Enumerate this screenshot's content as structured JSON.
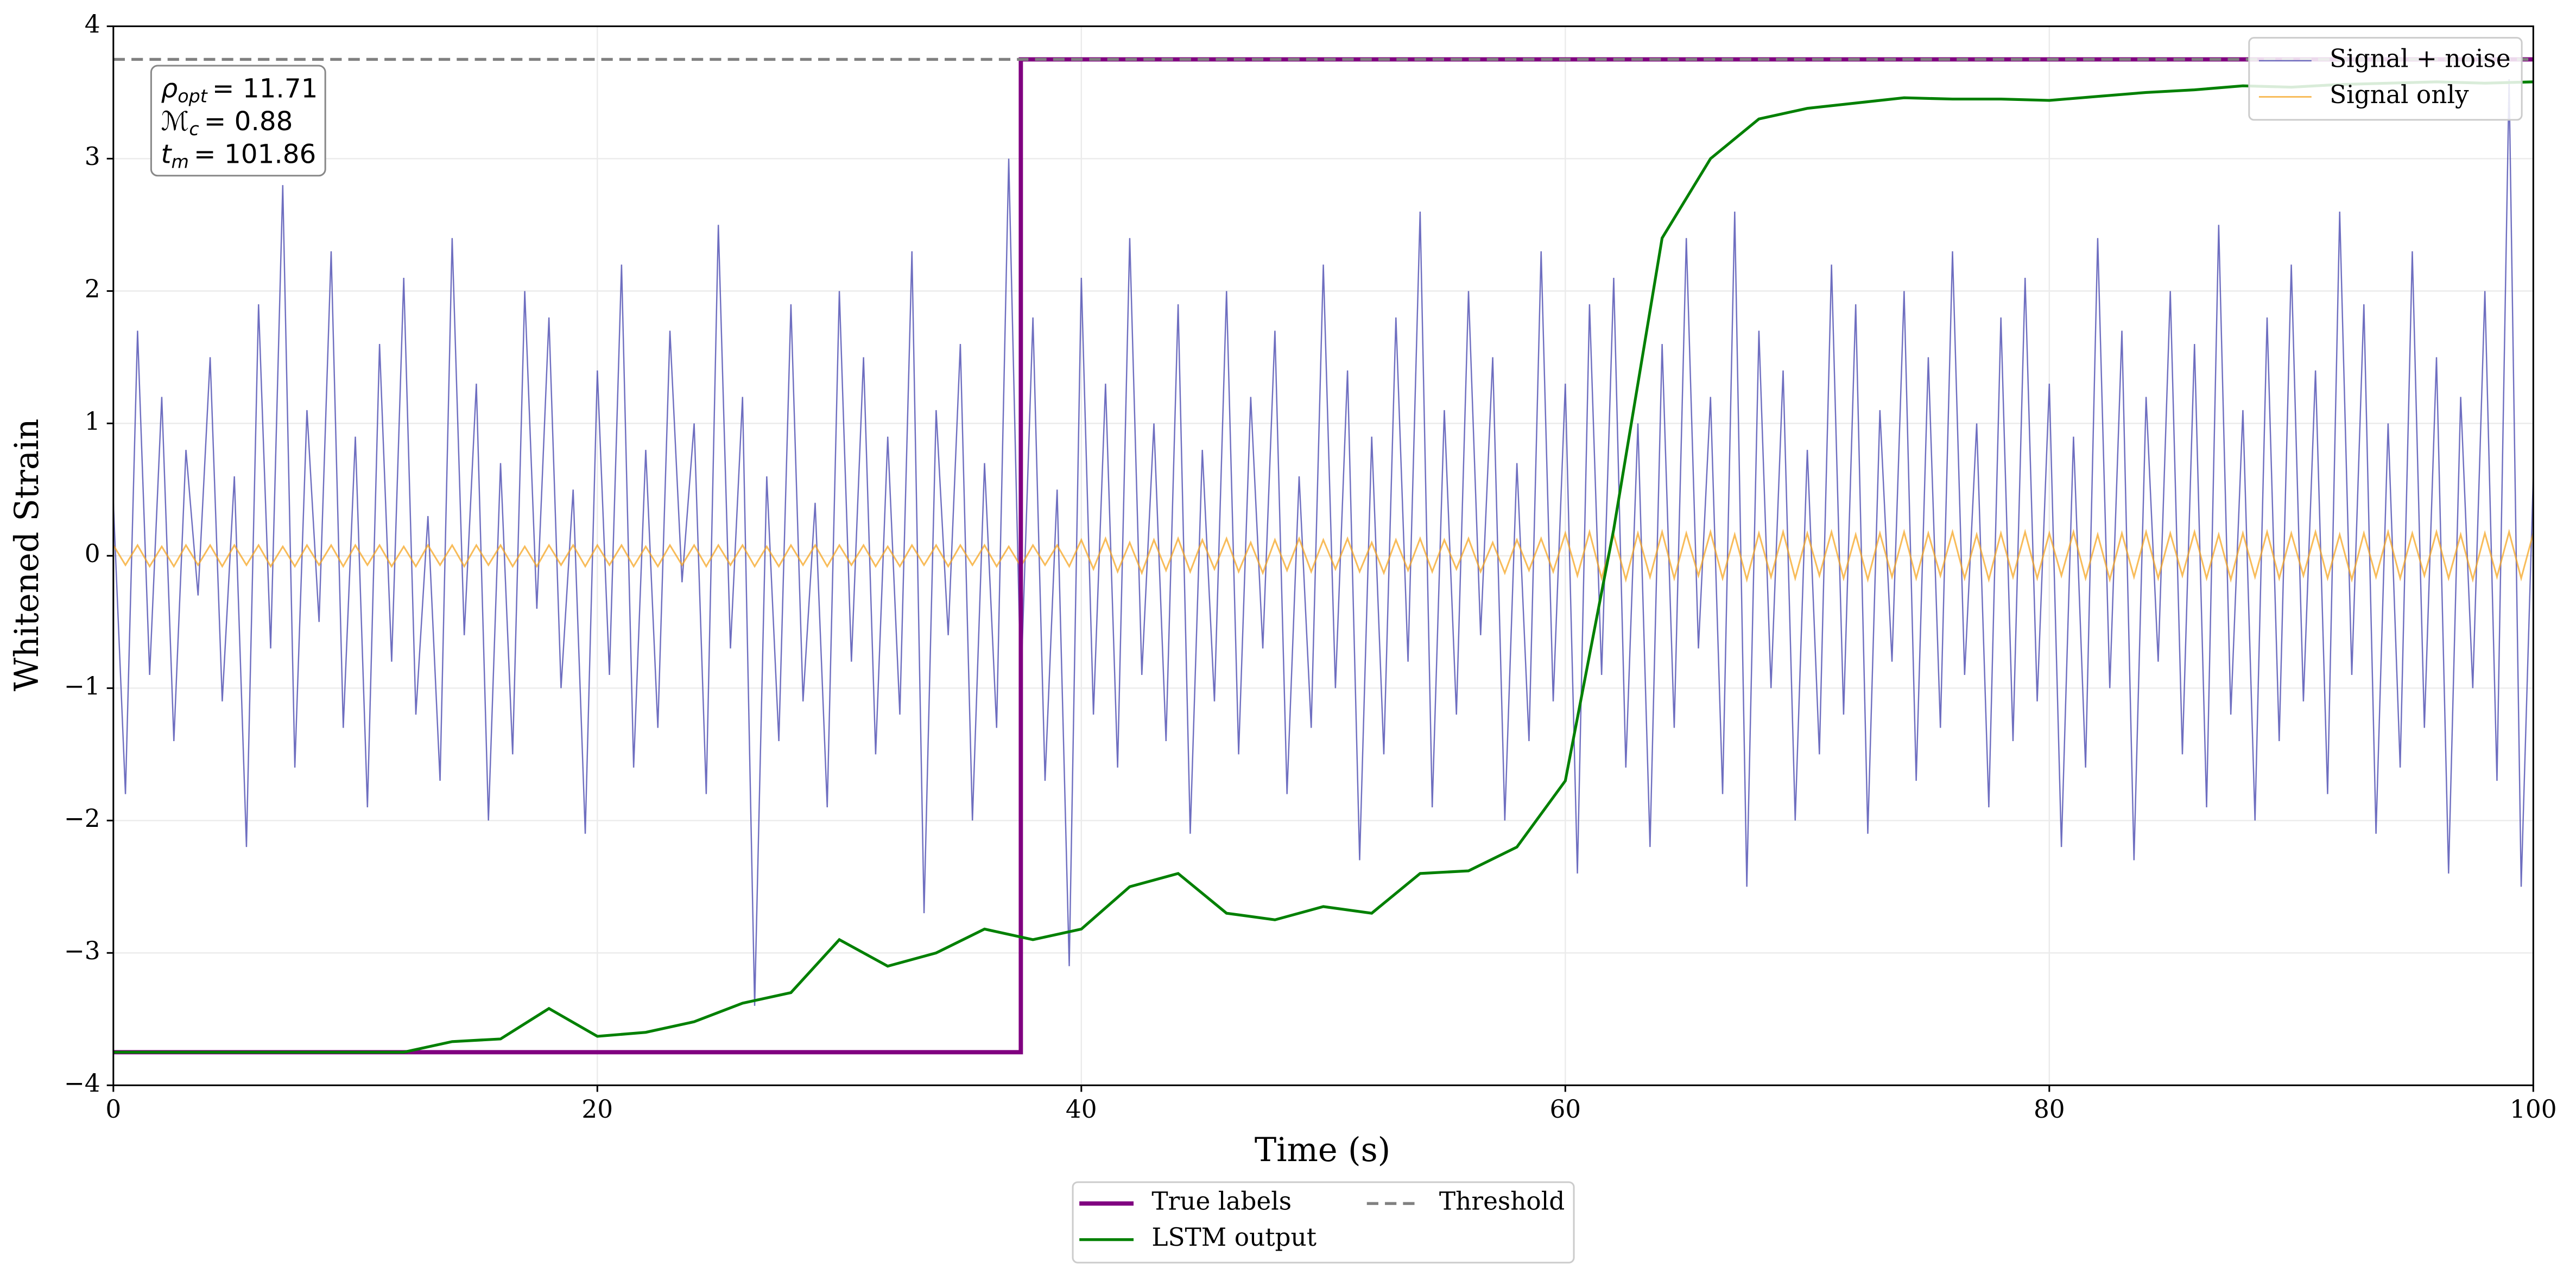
{
  "chart_data": {
    "type": "line",
    "xlabel": "Time (s)",
    "ylabel": "Whitened Strain",
    "xlim": [
      0,
      100
    ],
    "ylim": [
      -4,
      4
    ],
    "xticks": [
      0,
      20,
      40,
      60,
      80,
      100
    ],
    "yticks": [
      {
        "value": -4,
        "label": "−4"
      },
      {
        "value": -3,
        "label": "−3"
      },
      {
        "value": -2,
        "label": "−2"
      },
      {
        "value": -1,
        "label": "−1"
      },
      0,
      1,
      2,
      3,
      4
    ],
    "grid": true,
    "annotation": [
      {
        "symbol": "ρ",
        "sub": "opt",
        "text": "= 11.71"
      },
      {
        "symbol": "ℳ",
        "sub": "c",
        "text": "= 0.88"
      },
      {
        "symbol": "t",
        "sub": "m",
        "text": "= 101.86"
      }
    ],
    "series": [
      {
        "name": "Signal + noise",
        "color": "#5555b5",
        "legend": "upper right",
        "x": [
          0,
          0.5,
          1,
          1.5,
          2,
          2.5,
          3,
          3.5,
          4,
          4.5,
          5,
          5.5,
          6,
          6.5,
          7,
          7.5,
          8,
          8.5,
          9,
          9.5,
          10,
          10.5,
          11,
          11.5,
          12,
          12.5,
          13,
          13.5,
          14,
          14.5,
          15,
          15.5,
          16,
          16.5,
          17,
          17.5,
          18,
          18.5,
          19,
          19.5,
          20,
          20.5,
          21,
          21.5,
          22,
          22.5,
          23,
          23.5,
          24,
          24.5,
          25,
          25.5,
          26,
          26.5,
          27,
          27.5,
          28,
          28.5,
          29,
          29.5,
          30,
          30.5,
          31,
          31.5,
          32,
          32.5,
          33,
          33.5,
          34,
          34.5,
          35,
          35.5,
          36,
          36.5,
          37,
          37.5,
          38,
          38.5,
          39,
          39.5,
          40,
          40.5,
          41,
          41.5,
          42,
          42.5,
          43,
          43.5,
          44,
          44.5,
          45,
          45.5,
          46,
          46.5,
          47,
          47.5,
          48,
          48.5,
          49,
          49.5,
          50,
          50.5,
          51,
          51.5,
          52,
          52.5,
          53,
          53.5,
          54,
          54.5,
          55,
          55.5,
          56,
          56.5,
          57,
          57.5,
          58,
          58.5,
          59,
          59.5,
          60,
          60.5,
          61,
          61.5,
          62,
          62.5,
          63,
          63.5,
          64,
          64.5,
          65,
          65.5,
          66,
          66.5,
          67,
          67.5,
          68,
          68.5,
          69,
          69.5,
          70,
          70.5,
          71,
          71.5,
          72,
          72.5,
          73,
          73.5,
          74,
          74.5,
          75,
          75.5,
          76,
          76.5,
          77,
          77.5,
          78,
          78.5,
          79,
          79.5,
          80,
          80.5,
          81,
          81.5,
          82,
          82.5,
          83,
          83.5,
          84,
          84.5,
          85,
          85.5,
          86,
          86.5,
          87,
          87.5,
          88,
          88.5,
          89,
          89.5,
          90,
          90.5,
          91,
          91.5,
          92,
          92.5,
          93,
          93.5,
          94,
          94.5,
          95,
          95.5,
          96,
          96.5,
          97,
          97.5,
          98,
          98.5,
          99,
          99.5,
          100
        ],
        "values": [
          0.4,
          -1.8,
          1.7,
          -0.9,
          1.2,
          -1.4,
          0.8,
          -0.3,
          1.5,
          -1.1,
          0.6,
          -2.2,
          1.9,
          -0.7,
          2.8,
          -1.6,
          1.1,
          -0.5,
          2.3,
          -1.3,
          0.9,
          -1.9,
          1.6,
          -0.8,
          2.1,
          -1.2,
          0.3,
          -1.7,
          2.4,
          -0.6,
          1.3,
          -2.0,
          0.7,
          -1.5,
          2.0,
          -0.4,
          1.8,
          -1.0,
          0.5,
          -2.1,
          1.4,
          -0.9,
          2.2,
          -1.6,
          0.8,
          -1.3,
          1.7,
          -0.2,
          1.0,
          -1.8,
          2.5,
          -0.7,
          1.2,
          -3.4,
          0.6,
          -1.4,
          1.9,
          -1.1,
          0.4,
          -1.9,
          2.0,
          -0.8,
          1.5,
          -1.5,
          0.9,
          -1.2,
          2.3,
          -2.7,
          1.1,
          -0.6,
          1.6,
          -2.0,
          0.7,
          -1.3,
          3.0,
          -1.0,
          1.8,
          -1.7,
          0.5,
          -3.1,
          2.1,
          -1.2,
          1.3,
          -1.6,
          2.4,
          -0.9,
          1.0,
          -1.4,
          1.9,
          -2.1,
          0.8,
          -1.1,
          2.0,
          -1.5,
          1.2,
          -0.7,
          1.7,
          -1.8,
          0.6,
          -1.3,
          2.2,
          -1.0,
          1.4,
          -2.3,
          0.9,
          -1.5,
          1.8,
          -0.8,
          2.6,
          -1.9,
          1.1,
          -1.2,
          2.0,
          -0.6,
          1.5,
          -2.0,
          0.7,
          -1.4,
          2.3,
          -1.1,
          1.3,
          -2.4,
          1.9,
          -0.9,
          2.1,
          -1.6,
          1.0,
          -2.2,
          1.6,
          -1.3,
          2.4,
          -0.7,
          1.2,
          -1.8,
          2.6,
          -2.5,
          1.7,
          -1.0,
          1.4,
          -2.0,
          0.8,
          -1.5,
          2.2,
          -1.2,
          1.9,
          -2.1,
          1.1,
          -0.8,
          2.0,
          -1.7,
          1.5,
          -1.3,
          2.3,
          -0.9,
          1.0,
          -1.9,
          1.8,
          -1.4,
          2.1,
          -1.1,
          1.3,
          -2.2,
          0.9,
          -1.6,
          2.4,
          -1.0,
          1.7,
          -2.3,
          1.2,
          -0.8,
          2.0,
          -1.5,
          1.6,
          -1.9,
          2.5,
          -1.2,
          1.1,
          -2.0,
          1.8,
          -1.4,
          2.2,
          -1.1,
          1.4,
          -1.8,
          2.6,
          -0.9,
          1.9,
          -2.1,
          1.0,
          -1.6,
          2.3,
          -1.3,
          1.5,
          -2.4,
          1.2,
          -1.0,
          2.0,
          -1.7,
          3.6,
          -2.5,
          0.6
        ]
      },
      {
        "name": "Signal only",
        "color": "#f5a623",
        "legend": "upper right",
        "x": [
          0,
          0.5,
          1,
          1.5,
          2,
          2.5,
          3,
          3.5,
          4,
          4.5,
          5,
          5.5,
          6,
          6.5,
          7,
          7.5,
          8,
          8.5,
          9,
          9.5,
          10,
          10.5,
          11,
          11.5,
          12,
          12.5,
          13,
          13.5,
          14,
          14.5,
          15,
          15.5,
          16,
          16.5,
          17,
          17.5,
          18,
          18.5,
          19,
          19.5,
          20,
          20.5,
          21,
          21.5,
          22,
          22.5,
          23,
          23.5,
          24,
          24.5,
          25,
          25.5,
          26,
          26.5,
          27,
          27.5,
          28,
          28.5,
          29,
          29.5,
          30,
          30.5,
          31,
          31.5,
          32,
          32.5,
          33,
          33.5,
          34,
          34.5,
          35,
          35.5,
          36,
          36.5,
          37,
          37.5,
          38,
          38.5,
          39,
          39.5,
          40,
          40.5,
          41,
          41.5,
          42,
          42.5,
          43,
          43.5,
          44,
          44.5,
          45,
          45.5,
          46,
          46.5,
          47,
          47.5,
          48,
          48.5,
          49,
          49.5,
          50,
          50.5,
          51,
          51.5,
          52,
          52.5,
          53,
          53.5,
          54,
          54.5,
          55,
          55.5,
          56,
          56.5,
          57,
          57.5,
          58,
          58.5,
          59,
          59.5,
          60,
          60.5,
          61,
          61.5,
          62,
          62.5,
          63,
          63.5,
          64,
          64.5,
          65,
          65.5,
          66,
          66.5,
          67,
          67.5,
          68,
          68.5,
          69,
          69.5,
          70,
          70.5,
          71,
          71.5,
          72,
          72.5,
          73,
          73.5,
          74,
          74.5,
          75,
          75.5,
          76,
          76.5,
          77,
          77.5,
          78,
          78.5,
          79,
          79.5,
          80,
          80.5,
          81,
          81.5,
          82,
          82.5,
          83,
          83.5,
          84,
          84.5,
          85,
          85.5,
          86,
          86.5,
          87,
          87.5,
          88,
          88.5,
          89,
          89.5,
          90,
          90.5,
          91,
          91.5,
          92,
          92.5,
          93,
          93.5,
          94,
          94.5,
          95,
          95.5,
          96,
          96.5,
          97,
          97.5,
          98,
          98.5,
          99,
          99.5,
          100
        ],
        "values": [
          0.08,
          -0.07,
          0.08,
          -0.08,
          0.07,
          -0.08,
          0.08,
          -0.07,
          0.08,
          -0.08,
          0.08,
          -0.07,
          0.08,
          -0.08,
          0.07,
          -0.08,
          0.08,
          -0.07,
          0.08,
          -0.08,
          0.08,
          -0.07,
          0.08,
          -0.08,
          0.07,
          -0.08,
          0.08,
          -0.07,
          0.08,
          -0.08,
          0.08,
          -0.07,
          0.08,
          -0.08,
          0.07,
          -0.08,
          0.08,
          -0.07,
          0.08,
          -0.08,
          0.08,
          -0.07,
          0.08,
          -0.08,
          0.07,
          -0.08,
          0.08,
          -0.07,
          0.08,
          -0.08,
          0.08,
          -0.07,
          0.08,
          -0.08,
          0.07,
          -0.08,
          0.08,
          -0.07,
          0.08,
          -0.08,
          0.08,
          -0.07,
          0.08,
          -0.08,
          0.07,
          -0.08,
          0.08,
          -0.07,
          0.08,
          -0.08,
          0.08,
          -0.07,
          0.08,
          -0.08,
          0.07,
          -0.08,
          0.08,
          -0.07,
          0.08,
          -0.08,
          0.12,
          -0.1,
          0.13,
          -0.12,
          0.1,
          -0.13,
          0.12,
          -0.11,
          0.13,
          -0.12,
          0.12,
          -0.1,
          0.13,
          -0.12,
          0.1,
          -0.13,
          0.12,
          -0.11,
          0.13,
          -0.12,
          0.12,
          -0.1,
          0.13,
          -0.12,
          0.1,
          -0.13,
          0.12,
          -0.11,
          0.13,
          -0.12,
          0.12,
          -0.1,
          0.13,
          -0.12,
          0.1,
          -0.13,
          0.12,
          -0.11,
          0.13,
          -0.12,
          0.17,
          -0.15,
          0.18,
          -0.17,
          0.16,
          -0.18,
          0.17,
          -0.16,
          0.18,
          -0.17,
          0.17,
          -0.15,
          0.18,
          -0.17,
          0.16,
          -0.18,
          0.17,
          -0.16,
          0.18,
          -0.17,
          0.17,
          -0.15,
          0.18,
          -0.17,
          0.16,
          -0.18,
          0.17,
          -0.16,
          0.18,
          -0.17,
          0.17,
          -0.15,
          0.18,
          -0.17,
          0.16,
          -0.18,
          0.17,
          -0.16,
          0.18,
          -0.17,
          0.17,
          -0.15,
          0.18,
          -0.17,
          0.16,
          -0.18,
          0.17,
          -0.16,
          0.18,
          -0.17,
          0.17,
          -0.15,
          0.18,
          -0.17,
          0.16,
          -0.18,
          0.17,
          -0.16,
          0.18,
          -0.17,
          0.17,
          -0.15,
          0.18,
          -0.17,
          0.16,
          -0.18,
          0.17,
          -0.16,
          0.18,
          -0.17,
          0.17,
          -0.15,
          0.18,
          -0.17,
          0.16,
          -0.18,
          0.17,
          -0.16,
          0.18,
          -0.17,
          0.17
        ]
      },
      {
        "name": "True labels",
        "color": "#800080",
        "legend": "lower center",
        "x": [
          0,
          37.5,
          37.5,
          100
        ],
        "values": [
          -3.75,
          -3.75,
          3.75,
          3.75
        ]
      },
      {
        "name": "LSTM output",
        "color": "#008000",
        "legend": "lower center",
        "x": [
          0,
          2,
          4,
          6,
          8,
          10,
          12,
          14,
          16,
          18,
          20,
          22,
          24,
          26,
          28,
          30,
          32,
          34,
          36,
          38,
          40,
          42,
          44,
          46,
          48,
          50,
          52,
          54,
          56,
          58,
          60,
          62,
          64,
          66,
          68,
          70,
          72,
          74,
          76,
          78,
          80,
          82,
          84,
          86,
          88,
          90,
          92,
          94,
          96,
          98,
          100
        ],
        "values": [
          -3.75,
          -3.75,
          -3.75,
          -3.75,
          -3.75,
          -3.75,
          -3.75,
          -3.67,
          -3.65,
          -3.42,
          -3.63,
          -3.6,
          -3.52,
          -3.38,
          -3.3,
          -2.9,
          -3.1,
          -3.0,
          -2.82,
          -2.9,
          -2.82,
          -2.5,
          -2.4,
          -2.7,
          -2.75,
          -2.65,
          -2.7,
          -2.4,
          -2.38,
          -2.2,
          -1.7,
          0.2,
          2.4,
          3.0,
          3.3,
          3.38,
          3.42,
          3.46,
          3.45,
          3.45,
          3.44,
          3.47,
          3.5,
          3.52,
          3.55,
          3.54,
          3.56,
          3.57,
          3.58,
          3.57,
          3.58
        ]
      },
      {
        "name": "Threshold",
        "color": "#808080",
        "legend": "lower center",
        "dashed": true,
        "x": [
          0,
          100
        ],
        "values": [
          3.75,
          3.75
        ]
      }
    ]
  }
}
